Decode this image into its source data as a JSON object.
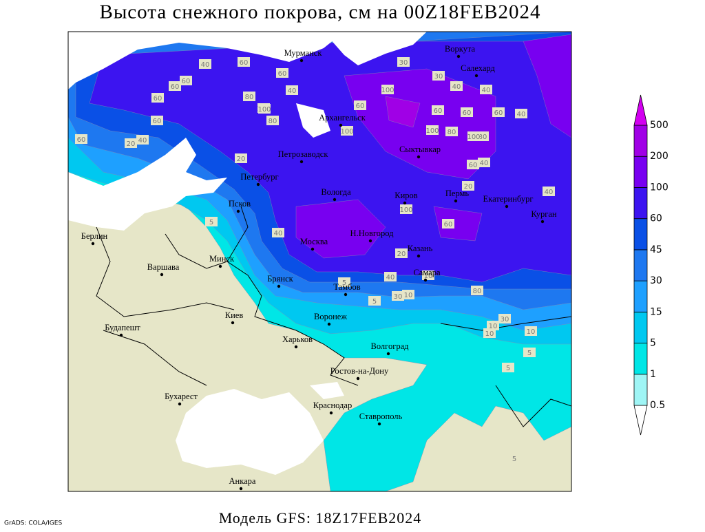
{
  "header": {
    "title": "Высота снежного покрова, см на 00Z18FEB2024"
  },
  "footer": {
    "model": "Модель GFS: 18Z17FEB2024",
    "credit": "GrADS: COLA/IGES"
  },
  "legend": {
    "levels": [
      0.5,
      1,
      5,
      15,
      30,
      45,
      60,
      100,
      200,
      500
    ],
    "colors": [
      "#ffffff",
      "#9ff5f5",
      "#00e6e6",
      "#00c8f0",
      "#1ea0ff",
      "#1e78f0",
      "#0a50e6",
      "#3c14f0",
      "#7800f0",
      "#a000e6",
      "#d200f0"
    ]
  },
  "cities": [
    "Мурманск",
    "Воркута",
    "Салехард",
    "Архангельск",
    "Сыктывкар",
    "Петрозаводск",
    "Петербург",
    "Вологда",
    "Киров",
    "Пермь",
    "Екатеринбург",
    "Курган",
    "Псков",
    "Москва",
    "Н.Новгород",
    "Казань",
    "Берлин",
    "Варшава",
    "Минск",
    "Брянск",
    "Тамбов",
    "Самара",
    "Киев",
    "Воронеж",
    "Харьков",
    "Волгоград",
    "Будапешт",
    "Ростов-на-Дону",
    "Бухарест",
    "Краснодар",
    "Ставрополь",
    "Анкара"
  ],
  "contour_labels": [
    60,
    40,
    60,
    60,
    60,
    60,
    20,
    40,
    60,
    100,
    80,
    60,
    40,
    100,
    80,
    100,
    60,
    100,
    60,
    100,
    60,
    40,
    80,
    20,
    40,
    60,
    40,
    80,
    100,
    60,
    40,
    30,
    30,
    40,
    20,
    30,
    10,
    10,
    5,
    5,
    10,
    40,
    5,
    5,
    5,
    10,
    10,
    5,
    40,
    80,
    60,
    100,
    20,
    30
  ]
}
